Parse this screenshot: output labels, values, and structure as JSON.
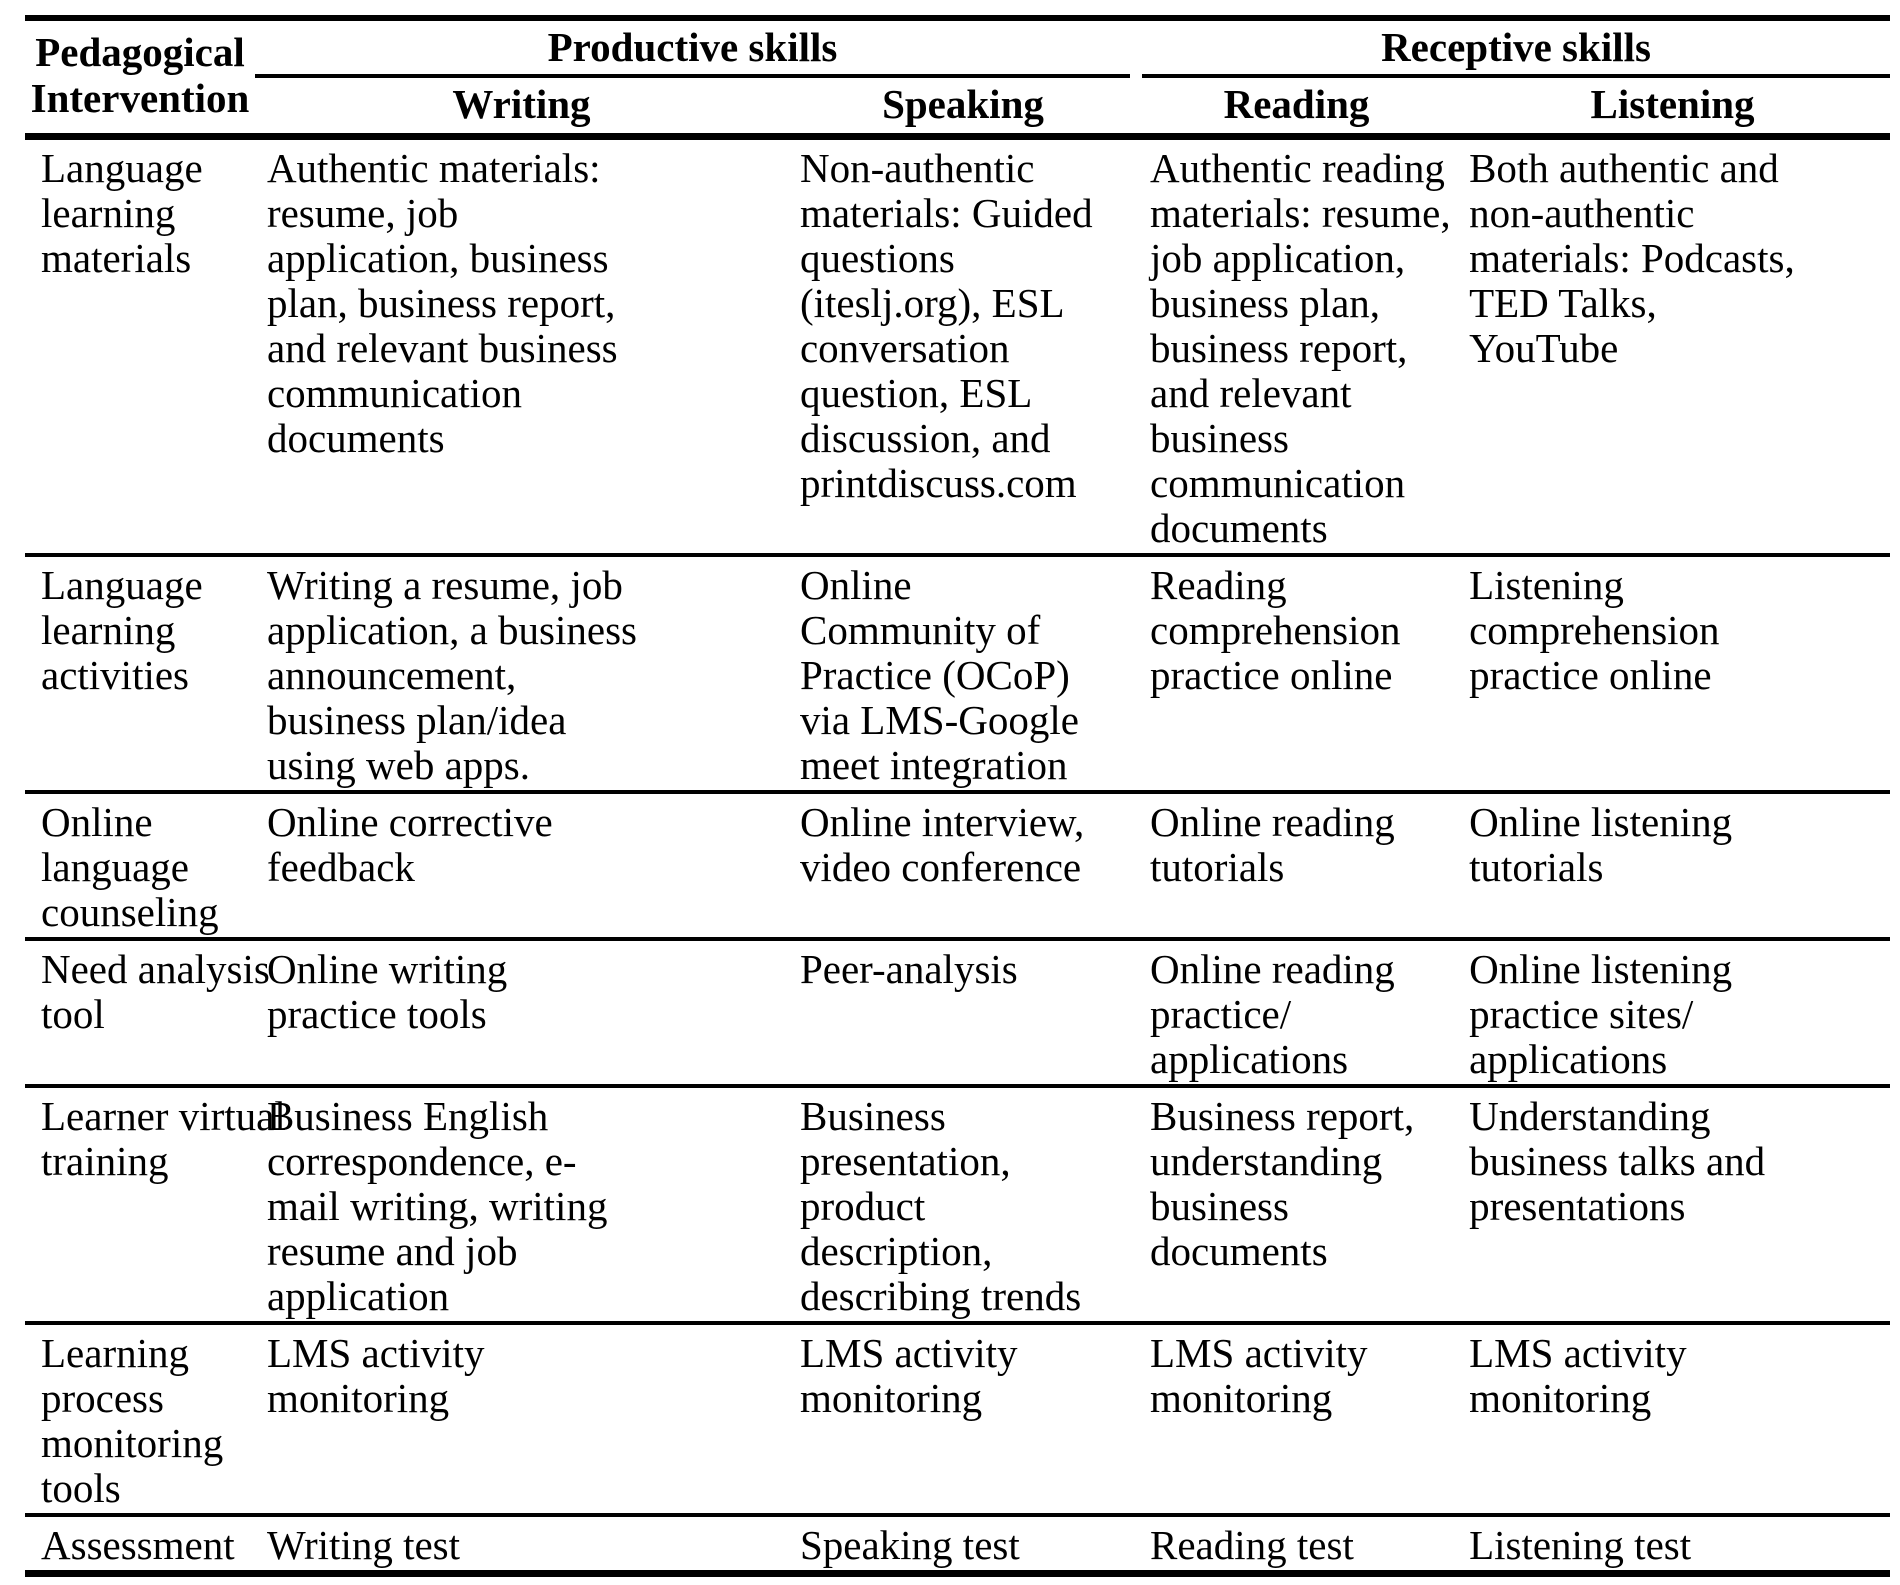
{
  "table": {
    "corner_header": "Pedagogical\nIntervention",
    "group_headers": [
      "Productive skills",
      "Receptive skills"
    ],
    "sub_headers": [
      "Writing",
      "Speaking",
      "Reading",
      "Listening"
    ],
    "rows": [
      {
        "intervention": "Language\nlearning\nmaterials",
        "writing": "Authentic materials:\nresume, job\napplication, business\nplan, business report,\nand relevant business\ncommunication\ndocuments",
        "speaking": "Non-authentic\nmaterials: Guided\nquestions\n(iteslj.org), ESL\nconversation\nquestion, ESL\ndiscussion, and\nprintdiscuss.com",
        "reading": "Authentic reading\nmaterials: resume,\njob application,\nbusiness plan,\nbusiness report,\nand relevant\nbusiness\ncommunication\ndocuments",
        "listening": "Both authentic and\nnon-authentic\nmaterials: Podcasts,\nTED Talks,\nYouTube"
      },
      {
        "intervention": "Language\nlearning\nactivities",
        "writing": "Writing a resume, job\napplication, a business\nannouncement,\nbusiness plan/idea\nusing web apps.",
        "speaking": "Online\nCommunity of\nPractice (OCoP)\nvia LMS-Google\nmeet integration",
        "reading": "Reading\ncomprehension\npractice online",
        "listening": "Listening\ncomprehension\npractice online"
      },
      {
        "intervention": "Online\nlanguage\ncounseling",
        "writing": "Online corrective\nfeedback",
        "speaking": "Online interview,\nvideo conference",
        "reading": "Online reading\ntutorials",
        "listening": "Online listening\ntutorials"
      },
      {
        "intervention": "Need analysis\ntool",
        "writing": "Online writing\npractice tools",
        "speaking": "Peer-analysis",
        "reading": "Online reading\npractice/\napplications",
        "listening": "Online listening\npractice sites/\napplications"
      },
      {
        "intervention": "Learner virtual\ntraining",
        "writing": "Business English\ncorrespondence, e-\nmail writing, writing\nresume and job\napplication",
        "speaking": "Business\npresentation,\nproduct\ndescription,\ndescribing trends",
        "reading": "Business report,\nunderstanding\nbusiness\ndocuments",
        "listening": "Understanding\nbusiness talks and\npresentations"
      },
      {
        "intervention": "Learning\nprocess\nmonitoring\ntools",
        "writing": "LMS activity\nmonitoring",
        "speaking": "LMS activity\nmonitoring",
        "reading": "LMS activity\nmonitoring",
        "listening": "LMS activity\nmonitoring"
      },
      {
        "intervention": "Assessment",
        "writing": "Writing test",
        "speaking": "Speaking test",
        "reading": "Reading test",
        "listening": "Listening test"
      }
    ]
  }
}
